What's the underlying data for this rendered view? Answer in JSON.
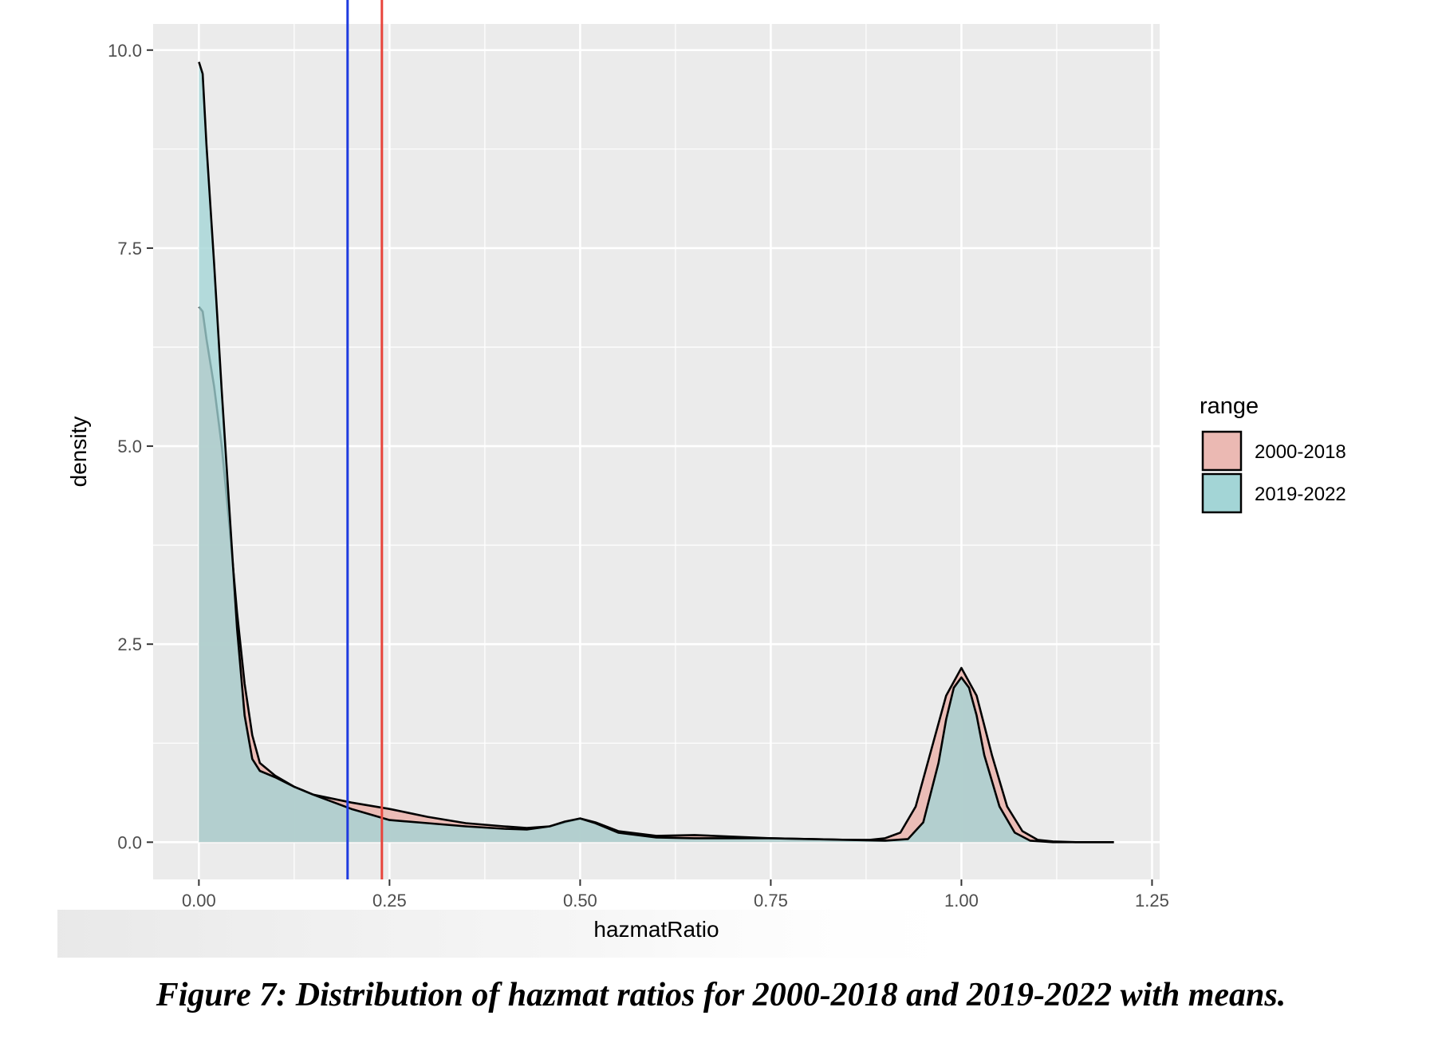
{
  "chart_data": {
    "type": "area",
    "xlabel": "hazmatRatio",
    "ylabel": "density",
    "xlim": [
      -0.06,
      1.26
    ],
    "ylim": [
      -0.47,
      10.33
    ],
    "x_ticks": [
      "0.00",
      "0.25",
      "0.50",
      "0.75",
      "1.00",
      "1.25"
    ],
    "x_tick_values": [
      0,
      0.25,
      0.5,
      0.75,
      1.0,
      1.25
    ],
    "y_ticks": [
      "0.0",
      "2.5",
      "5.0",
      "7.5",
      "10.0"
    ],
    "y_tick_values": [
      0,
      2.5,
      5.0,
      7.5,
      10.0
    ],
    "grid": true,
    "legend": {
      "title": "range",
      "position": "right"
    },
    "series": [
      {
        "name": "2000-2018",
        "color": "#F8766D",
        "fill": "#ebb9b3",
        "x": [
          0,
          0.005,
          0.01,
          0.02,
          0.03,
          0.04,
          0.05,
          0.06,
          0.07,
          0.08,
          0.1,
          0.125,
          0.15,
          0.2,
          0.25,
          0.3,
          0.35,
          0.4,
          0.43,
          0.46,
          0.48,
          0.5,
          0.52,
          0.55,
          0.6,
          0.65,
          0.7,
          0.75,
          0.8,
          0.85,
          0.88,
          0.9,
          0.92,
          0.94,
          0.96,
          0.98,
          1.0,
          1.02,
          1.04,
          1.06,
          1.08,
          1.1,
          1.12,
          1.15,
          1.2
        ],
        "y": [
          6.76,
          6.7,
          6.35,
          5.75,
          5.0,
          4.0,
          2.9,
          2.0,
          1.35,
          1.0,
          0.84,
          0.7,
          0.6,
          0.5,
          0.42,
          0.32,
          0.24,
          0.2,
          0.18,
          0.2,
          0.25,
          0.3,
          0.25,
          0.14,
          0.08,
          0.09,
          0.07,
          0.05,
          0.04,
          0.03,
          0.03,
          0.05,
          0.12,
          0.45,
          1.15,
          1.85,
          2.2,
          1.85,
          1.1,
          0.45,
          0.14,
          0.03,
          0.01,
          0,
          0
        ]
      },
      {
        "name": "2019-2022",
        "color": "#00BFC4",
        "fill": "#a3d5d6",
        "x": [
          0,
          0.005,
          0.01,
          0.02,
          0.03,
          0.04,
          0.05,
          0.06,
          0.07,
          0.08,
          0.1,
          0.125,
          0.15,
          0.2,
          0.25,
          0.3,
          0.35,
          0.4,
          0.43,
          0.46,
          0.48,
          0.5,
          0.52,
          0.55,
          0.6,
          0.65,
          0.7,
          0.75,
          0.8,
          0.85,
          0.9,
          0.93,
          0.95,
          0.97,
          0.98,
          0.99,
          1.0,
          1.01,
          1.02,
          1.03,
          1.05,
          1.07,
          1.09,
          1.12,
          1.2
        ],
        "y": [
          9.85,
          9.7,
          8.8,
          7.3,
          5.7,
          4.2,
          2.7,
          1.6,
          1.05,
          0.9,
          0.82,
          0.7,
          0.6,
          0.42,
          0.28,
          0.24,
          0.2,
          0.17,
          0.16,
          0.2,
          0.26,
          0.3,
          0.24,
          0.12,
          0.06,
          0.05,
          0.05,
          0.05,
          0.04,
          0.03,
          0.02,
          0.04,
          0.25,
          1.0,
          1.55,
          1.95,
          2.08,
          1.95,
          1.6,
          1.1,
          0.45,
          0.12,
          0.02,
          0,
          0
        ]
      }
    ],
    "mean_lines": [
      {
        "x": 0.195,
        "color": "#1f3be0"
      },
      {
        "x": 0.24,
        "color": "#e8453c"
      }
    ]
  },
  "caption": "Figure 7: Distribution of hazmat ratios for 2000-2018 and 2019-2022 with means."
}
